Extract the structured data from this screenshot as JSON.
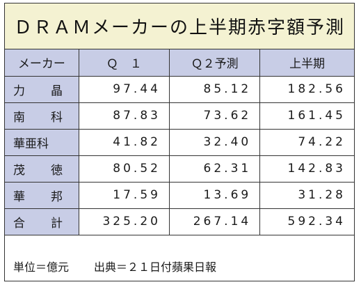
{
  "title": "ＤＲＡＭメーカーの上半期赤字額予測",
  "columns": [
    "メーカー",
    "Ｑ　１",
    "Ｑ２予測",
    "上半期"
  ],
  "rows": [
    {
      "maker": "力　晶",
      "q1": "97.44",
      "q2": "85.12",
      "h1": "182.56"
    },
    {
      "maker": "南　科",
      "q1": "87.83",
      "q2": "73.62",
      "h1": "161.45"
    },
    {
      "maker": "華亜科",
      "q1": "41.82",
      "q2": "32.40",
      "h1": "74.22"
    },
    {
      "maker": "茂　徳",
      "q1": "80.52",
      "q2": "62.31",
      "h1": "142.83"
    },
    {
      "maker": "華　邦",
      "q1": "17.59",
      "q2": "13.69",
      "h1": "31.28"
    },
    {
      "maker": "合　計",
      "q1": "325.20",
      "q2": "267.14",
      "h1": "592.34"
    }
  ],
  "footer": {
    "unit": "単位＝億元",
    "source": "出典＝２１日付蘋果日報"
  },
  "colors": {
    "title_bg": "#f4f2d2",
    "header_bg": "#c8cde6",
    "border": "#333333"
  }
}
